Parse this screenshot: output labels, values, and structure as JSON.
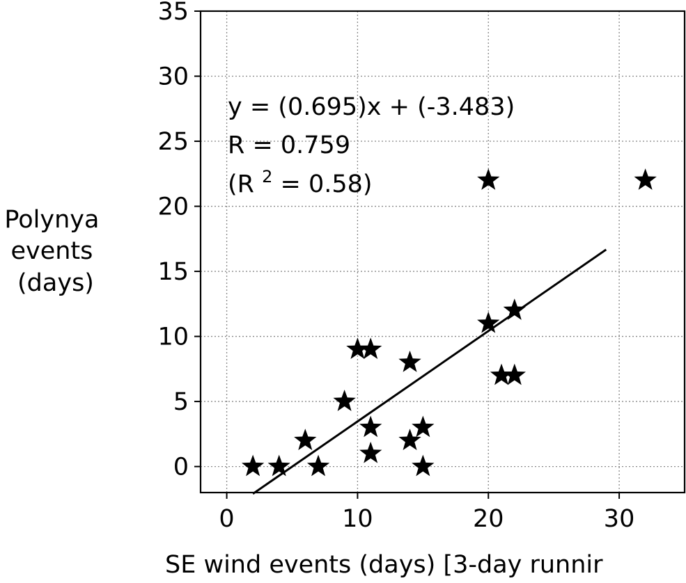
{
  "chart_data": {
    "type": "scatter",
    "title": "",
    "xlabel": "SE wind events (days) [3-day runnir",
    "ylabel_lines": [
      "Polynya",
      "events",
      "(days)"
    ],
    "xlim": [
      -2,
      35
    ],
    "ylim": [
      -2,
      35
    ],
    "xticks": [
      0,
      10,
      20,
      30
    ],
    "yticks": [
      0,
      5,
      10,
      15,
      20,
      25,
      30,
      35
    ],
    "grid": true,
    "marker": "star",
    "marker_color": "#000000",
    "points": [
      {
        "x": 2,
        "y": 0
      },
      {
        "x": 4,
        "y": 0
      },
      {
        "x": 6,
        "y": 2
      },
      {
        "x": 7,
        "y": 0
      },
      {
        "x": 9,
        "y": 5
      },
      {
        "x": 10,
        "y": 9
      },
      {
        "x": 11,
        "y": 9
      },
      {
        "x": 11,
        "y": 3
      },
      {
        "x": 11,
        "y": 1
      },
      {
        "x": 14,
        "y": 8
      },
      {
        "x": 14,
        "y": 2
      },
      {
        "x": 15,
        "y": 3
      },
      {
        "x": 15,
        "y": 0
      },
      {
        "x": 20,
        "y": 22
      },
      {
        "x": 20,
        "y": 11
      },
      {
        "x": 21,
        "y": 7
      },
      {
        "x": 22,
        "y": 12
      },
      {
        "x": 22,
        "y": 7
      },
      {
        "x": 32,
        "y": 22
      }
    ],
    "fit_line": {
      "slope": 0.695,
      "intercept": -3.483,
      "x_range": [
        2,
        29
      ],
      "color": "#000000"
    },
    "annotations": {
      "equation": "y = (0.695)x + (-3.483)",
      "r": "R = 0.759",
      "r2_prefix": "(R",
      "r2_sup": "2",
      "r2_suffix": "= 0.58)"
    }
  }
}
